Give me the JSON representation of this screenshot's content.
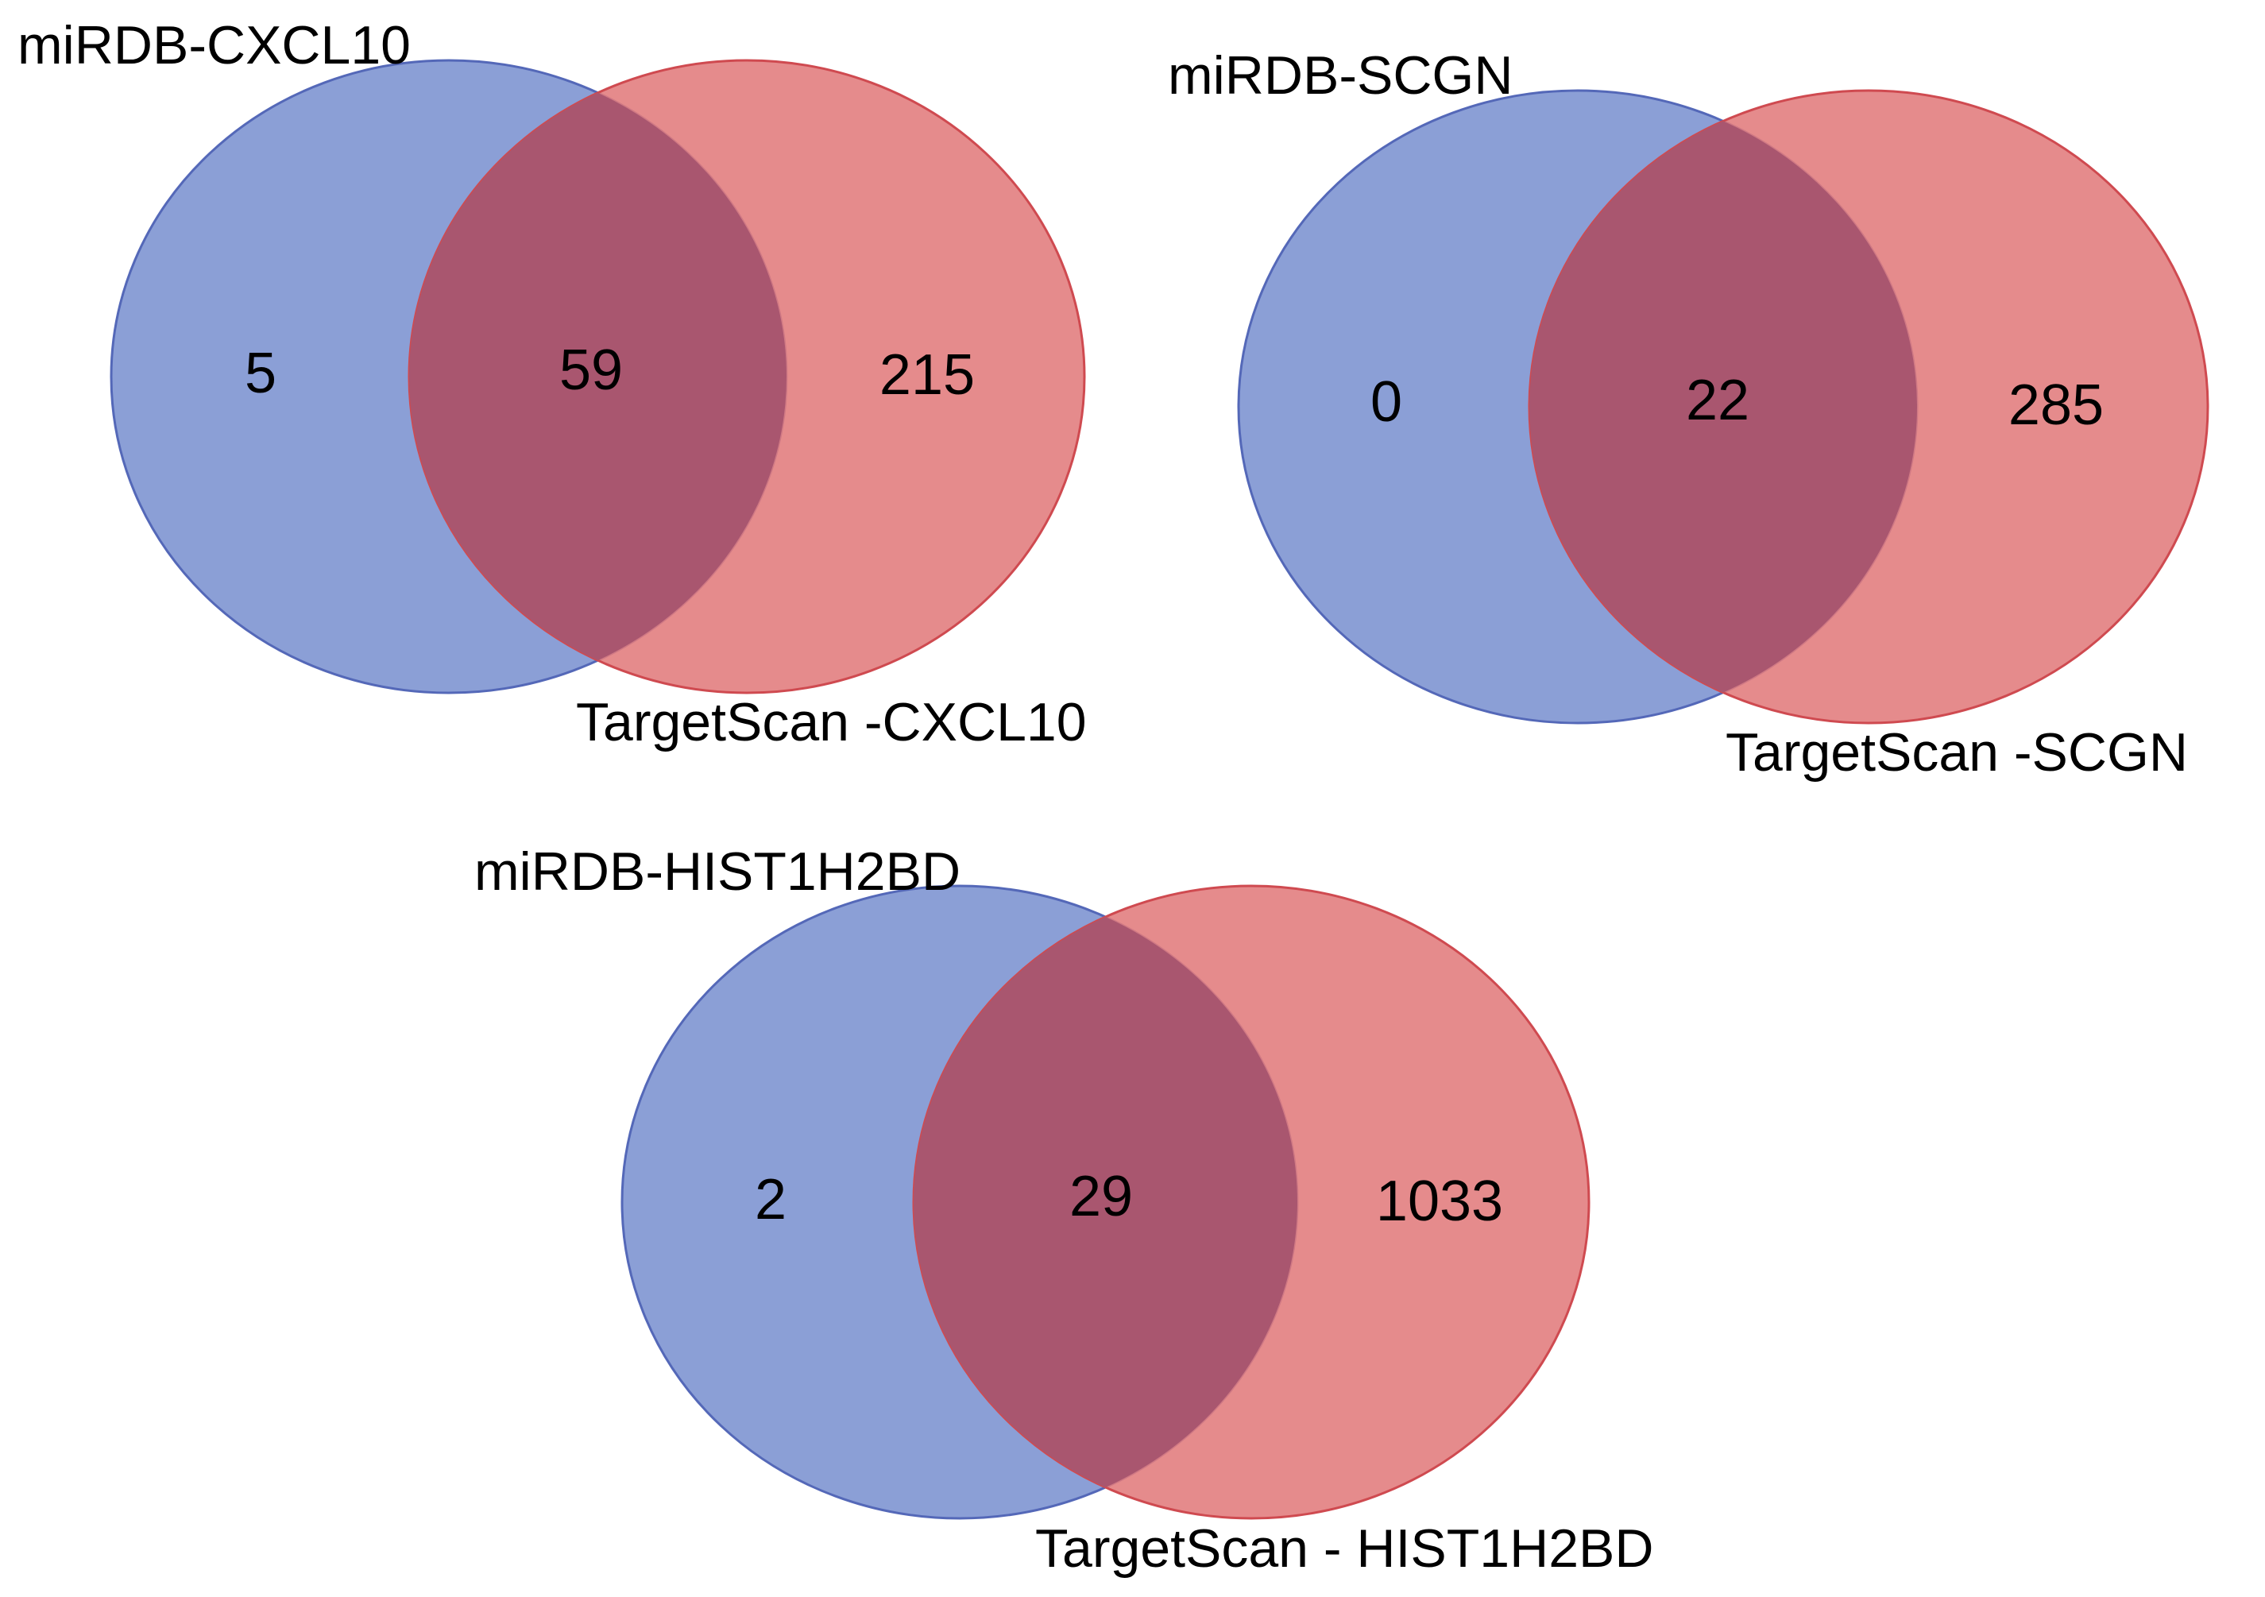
{
  "colors": {
    "set_a_fill": "#8b9fd6",
    "set_a_stroke": "#5468b8",
    "set_b_fill": "#e17b7c",
    "set_b_stroke": "#cf4a50",
    "overlap_fill": "#a9566f"
  },
  "diagrams": [
    {
      "set_a_label": "miRDB-CXCL10",
      "set_b_label": "TargetScan -CXCL10",
      "only_a": "5",
      "both": "59",
      "only_b": "215"
    },
    {
      "set_a_label": "miRDB-SCGN",
      "set_b_label": "TargetScan -SCGN",
      "only_a": "0",
      "both": "22",
      "only_b": "285"
    },
    {
      "set_a_label": "miRDB-HIST1H2BD",
      "set_b_label": "TargetScan - HIST1H2BD",
      "only_a": "2",
      "both": "29",
      "only_b": "1033"
    }
  ]
}
